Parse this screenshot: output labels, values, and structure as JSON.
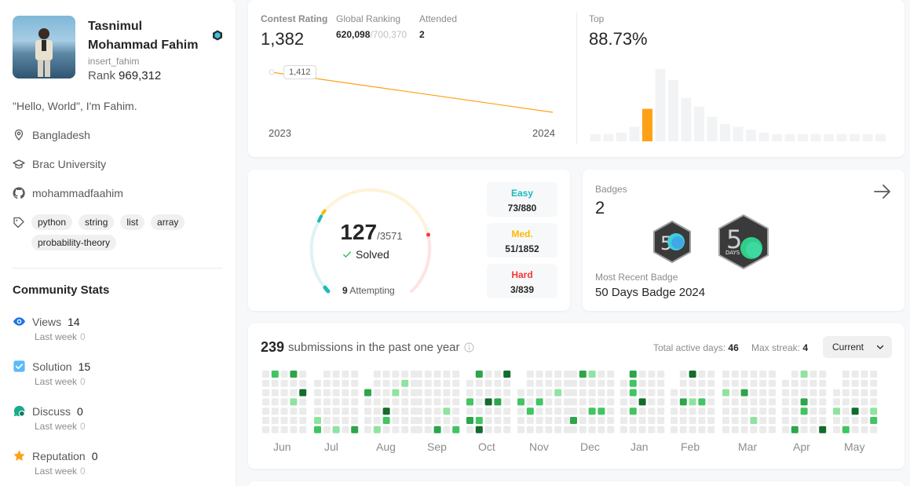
{
  "profile": {
    "name": "Tasnimul Mohammad Fahim",
    "username": "insert_fahim",
    "rank_label": "Rank",
    "rank_value": "969,312",
    "bio": "\"Hello, World\", I'm Fahim.",
    "location": "Bangladesh",
    "school": "Brac University",
    "github": "mohammadfaahim",
    "skills": [
      "python",
      "string",
      "list",
      "array",
      "probability-theory"
    ]
  },
  "community": {
    "title": "Community Stats",
    "last_week_label": "Last week",
    "stats": [
      {
        "label": "Views",
        "value": "14",
        "last_week": "0",
        "icon": "eye-icon",
        "color": "#1a73e8"
      },
      {
        "label": "Solution",
        "value": "15",
        "last_week": "0",
        "icon": "solution-check-icon",
        "color": "#5bbaf7"
      },
      {
        "label": "Discuss",
        "value": "0",
        "last_week": "0",
        "icon": "discuss-icon",
        "color": "#1aaa8c"
      },
      {
        "label": "Reputation",
        "value": "0",
        "last_week": "0",
        "icon": "star-icon",
        "color": "#ffa116"
      }
    ]
  },
  "contest": {
    "rating_label": "Contest Rating",
    "rating_value": "1,382",
    "global_label": "Global Ranking",
    "global_value": "620,098",
    "global_total": "/700,370",
    "attended_label": "Attended",
    "attended_value": "2",
    "top_label": "Top",
    "top_value": "88.73%",
    "point_label": "1,412",
    "year_start": "2023",
    "year_end": "2024",
    "line_color": "#ffa116",
    "histogram": [
      0.1,
      0.1,
      0.12,
      0.2,
      0.45,
      1.0,
      0.85,
      0.6,
      0.48,
      0.34,
      0.24,
      0.2,
      0.16,
      0.12,
      0.1,
      0.1,
      0.1,
      0.1,
      0.1,
      0.1,
      0.1,
      0.1,
      0.1
    ],
    "highlight_index": 4,
    "highlight_color": "#ffa116"
  },
  "solved": {
    "count": "127",
    "total": "/3571",
    "status": "Solved",
    "attempting_count": "9",
    "attempting_label": "Attempting",
    "difficulties": [
      {
        "name": "Easy",
        "value": "73/880",
        "color": "#1cbaba"
      },
      {
        "name": "Med.",
        "value": "51/1852",
        "color": "#ffb700"
      },
      {
        "name": "Hard",
        "value": "3/839",
        "color": "#f63737"
      }
    ]
  },
  "badges": {
    "label": "Badges",
    "count": "2",
    "recent_label": "Most Recent Badge",
    "recent_name": "50 Days Badge 2024",
    "badge_text": "DAYS"
  },
  "submissions": {
    "count": "239",
    "label": "submissions in the past one year",
    "active_label": "Total active days:",
    "active_value": "46",
    "streak_label": "Max streak:",
    "streak_value": "4",
    "dropdown": "Current",
    "months": [
      "Jun",
      "Jul",
      "Aug",
      "Sep",
      "Oct",
      "Nov",
      "Dec",
      "Jan",
      "Feb",
      "Mar",
      "Apr",
      "May"
    ]
  }
}
